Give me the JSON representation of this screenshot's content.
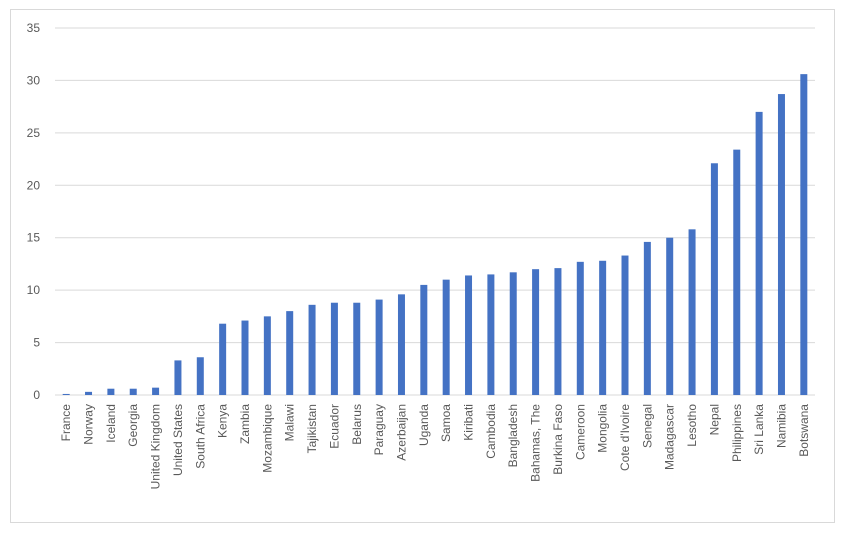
{
  "chart_data": {
    "type": "bar",
    "title": "",
    "xlabel": "",
    "ylabel": "",
    "ylim": [
      0,
      35
    ],
    "yticks": [
      0,
      5,
      10,
      15,
      20,
      25,
      30,
      35
    ],
    "grid": true,
    "legend": "none",
    "bar_color": "#4472C4",
    "grid_color": "#d9d9d9",
    "categories": [
      "France",
      "Norway",
      "Iceland",
      "Georgia",
      "United Kingdom",
      "United States",
      "South Africa",
      "Kenya",
      "Zambia",
      "Mozambique",
      "Malawi",
      "Tajikistan",
      "Ecuador",
      "Belarus",
      "Paraguay",
      "Azerbaijan",
      "Uganda",
      "Samoa",
      "Kiribati",
      "Cambodia",
      "Bangladesh",
      "Bahamas, The",
      "Burkina Faso",
      "Cameroon",
      "Mongolia",
      "Cote d'Ivoire",
      "Senegal",
      "Madagascar",
      "Lesotho",
      "Nepal",
      "Philippines",
      "Sri Lanka",
      "Namibia",
      "Botswana"
    ],
    "values": [
      0.1,
      0.3,
      0.6,
      0.6,
      0.7,
      3.3,
      3.6,
      6.8,
      7.1,
      7.5,
      8.0,
      8.6,
      8.8,
      8.8,
      9.1,
      9.6,
      10.5,
      11.0,
      11.4,
      11.5,
      11.7,
      12.0,
      12.1,
      12.7,
      12.8,
      13.3,
      14.6,
      15.0,
      15.8,
      22.1,
      23.4,
      27.0,
      28.7,
      30.6
    ]
  }
}
